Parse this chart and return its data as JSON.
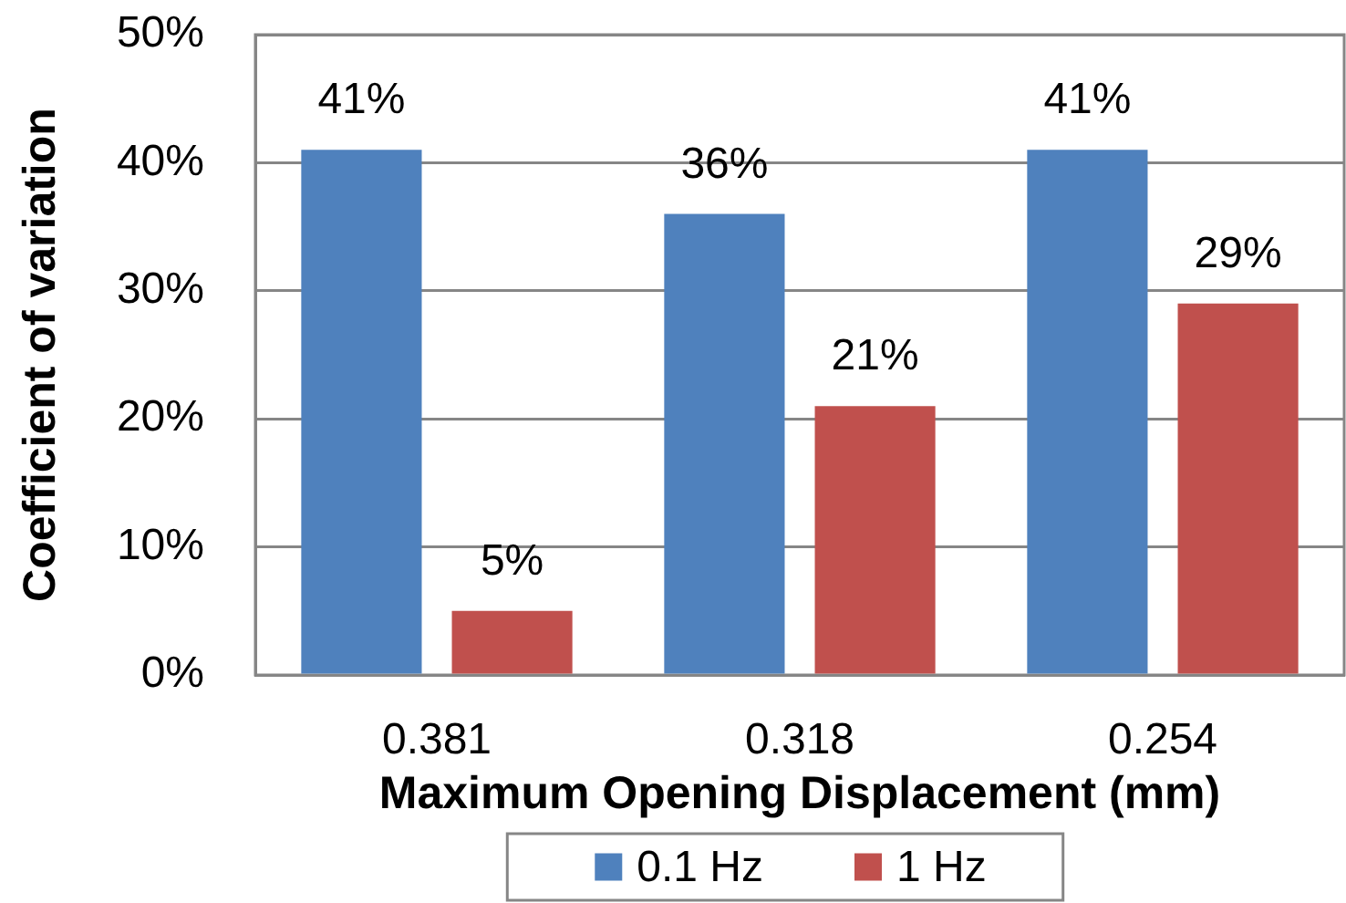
{
  "chart_data": {
    "type": "bar",
    "xlabel": "Maximum Opening Displacement (mm)",
    "ylabel": "Coefficient of variation",
    "categories": [
      "0.381",
      "0.318",
      "0.254"
    ],
    "series": [
      {
        "name": "0.1 Hz",
        "color": "#4f81bd",
        "values": [
          41,
          36,
          41
        ],
        "value_labels": [
          "41%",
          "36%",
          "41%"
        ]
      },
      {
        "name": "1 Hz",
        "color": "#c0504d",
        "values": [
          5,
          21,
          29
        ],
        "value_labels": [
          "5%",
          "21%",
          "29%"
        ]
      }
    ],
    "ylim": [
      0,
      50
    ],
    "yticks": [
      {
        "value": 0,
        "label": "0%"
      },
      {
        "value": 10,
        "label": "10%"
      },
      {
        "value": 20,
        "label": "20%"
      },
      {
        "value": 30,
        "label": "30%"
      },
      {
        "value": 40,
        "label": "40%"
      },
      {
        "value": 50,
        "label": "50%"
      }
    ],
    "grid": "y",
    "legend": "bottom"
  }
}
